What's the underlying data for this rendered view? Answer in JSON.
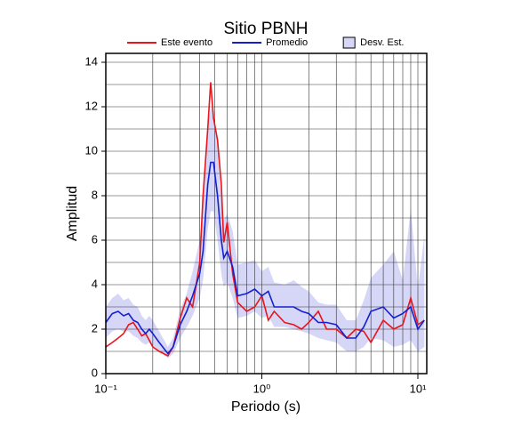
{
  "chart_data": {
    "type": "line",
    "title": "Sitio PBNH",
    "x_label": "Periodo (s)",
    "y_label": "Amplitud",
    "x": [
      0.1,
      0.11,
      0.12,
      0.13,
      0.14,
      0.15,
      0.16,
      0.17,
      0.18,
      0.19,
      0.2,
      0.22,
      0.25,
      0.27,
      0.3,
      0.33,
      0.36,
      0.4,
      0.42,
      0.45,
      0.47,
      0.49,
      0.52,
      0.55,
      0.57,
      0.6,
      0.65,
      0.7,
      0.8,
      0.9,
      1.0,
      1.1,
      1.2,
      1.4,
      1.6,
      1.8,
      2.0,
      2.3,
      2.6,
      3.0,
      3.5,
      4.0,
      4.5,
      5.0,
      6.0,
      7.0,
      8.0,
      9.0,
      10,
      11
    ],
    "series": [
      {
        "name": "Este evento",
        "color": "#e8161b",
        "values": [
          1.2,
          1.4,
          1.6,
          1.8,
          2.2,
          2.3,
          2.0,
          1.7,
          1.8,
          1.5,
          1.2,
          1.0,
          0.8,
          1.2,
          2.5,
          3.4,
          3.0,
          5.0,
          8.0,
          11,
          13.1,
          11.5,
          10.5,
          8.5,
          5.9,
          6.8,
          4.5,
          3.2,
          2.8,
          3.0,
          3.5,
          2.4,
          2.8,
          2.3,
          2.2,
          2.0,
          2.3,
          2.8,
          2.0,
          2.0,
          1.6,
          2.0,
          1.9,
          1.4,
          2.4,
          2.0,
          2.2,
          3.4,
          2.2,
          2.4
        ]
      },
      {
        "name": "Promedio",
        "color": "#1420d0",
        "values": [
          2.3,
          2.7,
          2.8,
          2.6,
          2.7,
          2.4,
          2.3,
          2.0,
          1.8,
          2.0,
          1.8,
          1.4,
          0.9,
          1.2,
          2.2,
          2.8,
          3.5,
          4.5,
          5.5,
          8.5,
          9.5,
          9.5,
          8.0,
          6.0,
          5.2,
          5.5,
          4.8,
          3.5,
          3.6,
          3.8,
          3.5,
          3.7,
          3.0,
          3.0,
          3.0,
          2.8,
          2.7,
          2.3,
          2.3,
          2.2,
          1.6,
          1.6,
          2.1,
          2.8,
          3.0,
          2.5,
          2.7,
          3.0,
          2.0,
          2.4
        ]
      }
    ],
    "band": {
      "name": "Desv. Est.",
      "color": "#d6d6f7",
      "lower": [
        1.6,
        1.9,
        2.0,
        1.9,
        1.9,
        1.7,
        1.6,
        1.4,
        1.3,
        1.4,
        1.2,
        1.0,
        0.7,
        0.9,
        1.6,
        2.1,
        2.6,
        3.4,
        4.2,
        6.5,
        7.3,
        7.3,
        6.0,
        4.5,
        3.9,
        4.1,
        3.4,
        2.5,
        2.6,
        2.8,
        2.5,
        2.6,
        2.1,
        2.1,
        2.0,
        1.9,
        1.8,
        1.6,
        1.5,
        1.4,
        1.0,
        1.0,
        1.2,
        1.6,
        1.5,
        1.2,
        1.3,
        1.5,
        1.0,
        1.2
      ],
      "upper": [
        3.0,
        3.4,
        3.6,
        3.3,
        3.4,
        3.1,
        3.0,
        2.6,
        2.4,
        2.6,
        2.4,
        1.9,
        1.2,
        1.6,
        2.9,
        3.6,
        4.6,
        6.0,
        7.4,
        11.0,
        12.0,
        11.7,
        10.2,
        7.8,
        6.9,
        7.2,
        6.4,
        4.9,
        5.0,
        5.1,
        4.6,
        4.8,
        4.1,
        4.0,
        4.2,
        3.9,
        3.7,
        3.2,
        3.1,
        3.1,
        2.4,
        2.4,
        3.3,
        4.3,
        4.9,
        5.5,
        4.2,
        7.4,
        3.8,
        6.2
      ]
    },
    "xlim": [
      0.1,
      11.4
    ],
    "ylim": [
      0,
      14.4
    ],
    "log_x": true,
    "xticks": [
      {
        "value": 0.1,
        "label": "10⁻¹"
      },
      {
        "value": 1,
        "label": "10⁰"
      },
      {
        "value": 10,
        "label": "10¹"
      }
    ],
    "yticks": [
      0,
      2,
      4,
      6,
      8,
      10,
      12,
      14
    ],
    "xgrid": [
      0.1,
      0.2,
      0.3,
      0.4,
      0.5,
      0.6,
      0.7,
      0.8,
      0.9,
      1,
      2,
      3,
      4,
      5,
      6,
      7,
      8,
      9,
      10
    ],
    "ygrid": [
      1,
      2,
      3,
      4,
      5,
      6,
      7,
      8,
      9,
      10,
      11,
      12,
      13,
      14
    ]
  }
}
